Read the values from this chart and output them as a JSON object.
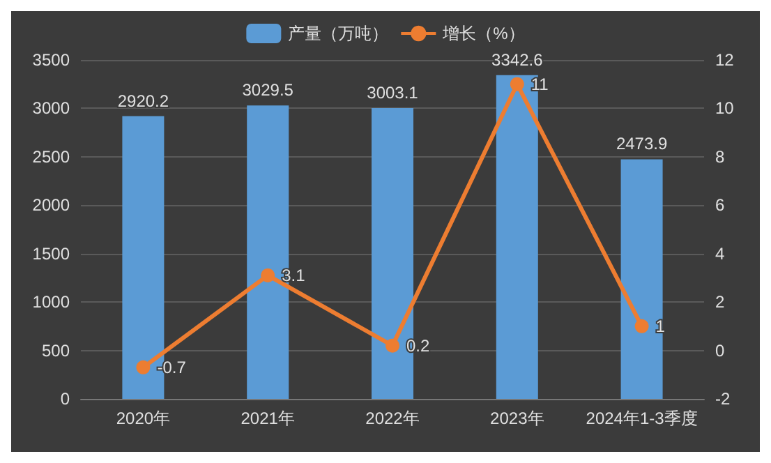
{
  "chart_data": {
    "type": "bar",
    "categories": [
      "2020年",
      "2021年",
      "2022年",
      "2023年",
      "2024年1-3季度"
    ],
    "series": [
      {
        "name": "产量（万吨）",
        "color": "#5b9bd5",
        "values": [
          2920.2,
          3029.5,
          3003.1,
          3342.6,
          2473.9
        ]
      },
      {
        "name": "增长（%）",
        "type": "line",
        "axis": "y2",
        "color": "#ed7d31",
        "values": [
          -0.7,
          3.1,
          0.2,
          11,
          1
        ]
      }
    ],
    "ylim": [
      0,
      3500
    ],
    "yticks": [
      0,
      500,
      1000,
      1500,
      2000,
      2500,
      3000,
      3500
    ],
    "y2lim": [
      -2,
      12
    ],
    "y2ticks": [
      -2,
      0,
      2,
      4,
      6,
      8,
      10,
      12
    ],
    "data_labels": true,
    "marker": "circle",
    "grid": "y",
    "legend": "top"
  }
}
